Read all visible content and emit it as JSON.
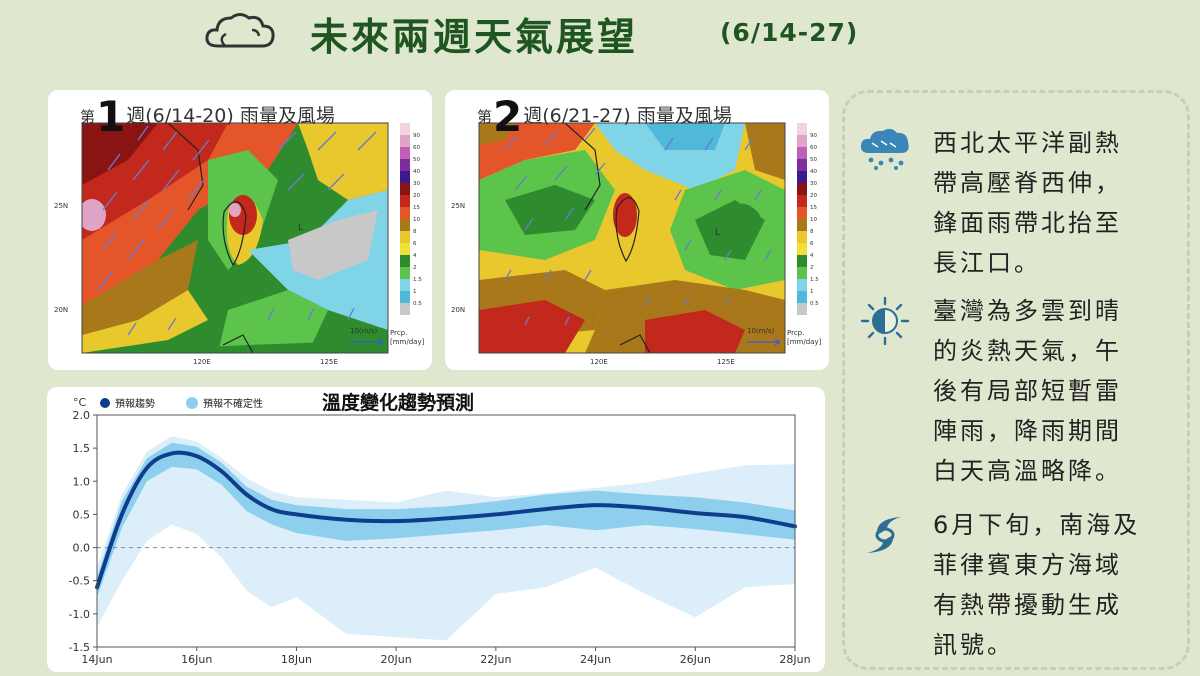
{
  "header": {
    "title": "未來兩週天氣展望",
    "range": "(6/14-27)"
  },
  "maps": [
    {
      "title_prefix": "第",
      "week_num": "1",
      "title_suffix": "週(6/14-20) 雨量及風場",
      "lat_labels": [
        "25N",
        "20N"
      ],
      "lon_labels": [
        "120E",
        "125E"
      ],
      "wind_ref": "10(m/s)",
      "unit_line1": "Prcp.",
      "unit_line2": "[mm/day]"
    },
    {
      "title_prefix": "第",
      "week_num": "2",
      "title_suffix": "週(6/21-27) 雨量及風場",
      "lat_labels": [
        "25N",
        "20N"
      ],
      "lon_labels": [
        "120E",
        "125E"
      ],
      "wind_ref": "10(m/s)",
      "unit_line1": "Prcp.",
      "unit_line2": "[mm/day]"
    }
  ],
  "colorbar": {
    "labels": [
      "90",
      "60",
      "50",
      "40",
      "30",
      "20",
      "15",
      "10",
      "8",
      "6",
      "4",
      "2",
      "1.5",
      "1",
      "0.5"
    ],
    "colors": [
      "#f2d4df",
      "#e0a4c6",
      "#bf5fb8",
      "#7d2d9e",
      "#3a1a8c",
      "#8a1414",
      "#c2281c",
      "#e4562a",
      "#a8781a",
      "#e8c82c",
      "#f0e038",
      "#2e8c2e",
      "#5cc44a",
      "#80d4e8",
      "#50b8d8",
      "#c8c8c8"
    ]
  },
  "chart_data": {
    "type": "line",
    "title": "溫度變化趨勢預測",
    "yunit": "°C",
    "legend": [
      "預報趨勢",
      "預報不確定性"
    ],
    "legend_placement": "top-left",
    "ylim": [
      -1.5,
      2.0
    ],
    "yticks": [
      "2.0",
      "1.5",
      "1.0",
      "0.5",
      "0.0",
      "-0.5",
      "-1.0",
      "-1.5"
    ],
    "xlim": [
      "14Jun",
      "28Jun"
    ],
    "xticks": [
      "14Jun",
      "16Jun",
      "18Jun",
      "20Jun",
      "22Jun",
      "24Jun",
      "26Jun",
      "28Jun"
    ],
    "reference_line": 0.0,
    "series": [
      {
        "name": "預報趨勢",
        "color": "#0d3d8c",
        "x": [
          0,
          0.5,
          1,
          1.5,
          2,
          2.5,
          3,
          3.5,
          4,
          5,
          6,
          7,
          8,
          9,
          10,
          11,
          12,
          13,
          14
        ],
        "values": [
          -0.6,
          0.5,
          1.2,
          1.42,
          1.38,
          1.15,
          0.8,
          0.58,
          0.5,
          0.42,
          0.4,
          0.44,
          0.5,
          0.58,
          0.64,
          0.6,
          0.52,
          0.46,
          0.32
        ]
      }
    ],
    "uncertainty_outer": {
      "name": "預報不確定性",
      "color": "#dbeef9",
      "x": [
        0,
        0.5,
        1,
        1.5,
        2,
        2.5,
        3,
        3.5,
        4,
        5,
        6,
        7,
        8,
        9,
        10,
        11,
        12,
        13,
        14
      ],
      "upper": [
        -0.3,
        0.8,
        1.45,
        1.68,
        1.6,
        1.35,
        1.05,
        0.85,
        0.76,
        0.72,
        0.68,
        0.86,
        0.76,
        0.82,
        0.9,
        0.98,
        1.12,
        1.24,
        1.26
      ],
      "lower": [
        -1.2,
        -0.5,
        0.1,
        0.35,
        0.2,
        -0.15,
        -0.65,
        -0.9,
        -0.75,
        -1.3,
        -1.35,
        -1.4,
        -0.7,
        -0.6,
        -0.3,
        -0.7,
        -1.05,
        -0.6,
        -0.55
      ]
    },
    "uncertainty_inner": {
      "color": "#8fcfee",
      "x": [
        0,
        0.5,
        1,
        1.5,
        2,
        2.5,
        3,
        3.5,
        4,
        5,
        6,
        7,
        8,
        9,
        10,
        11,
        12,
        13,
        14
      ],
      "upper": [
        -0.45,
        0.7,
        1.35,
        1.58,
        1.52,
        1.28,
        0.92,
        0.72,
        0.64,
        0.58,
        0.58,
        0.62,
        0.7,
        0.8,
        0.86,
        0.8,
        0.76,
        0.68,
        0.56
      ],
      "lower": [
        -0.75,
        0.3,
        1.0,
        1.22,
        1.18,
        0.95,
        0.55,
        0.35,
        0.22,
        0.1,
        0.14,
        0.2,
        0.26,
        0.34,
        0.26,
        0.34,
        0.28,
        0.2,
        0.12
      ]
    }
  },
  "outlook": [
    {
      "icon": "rain-cloud-icon",
      "lines": [
        "西北太平洋副熱",
        "帶高壓脊西伸，",
        "鋒面雨帶北抬至",
        "長江口。"
      ]
    },
    {
      "icon": "sun-cloud-icon",
      "lines": [
        "臺灣為多雲到晴",
        "的炎熱天氣，午",
        "後有局部短暫雷",
        "陣雨，降雨期間",
        "白天高溫略降。"
      ]
    },
    {
      "icon": "typhoon-icon",
      "lines": [
        "6月下旬，南海及",
        "菲律賓東方海域",
        "有熱帶擾動生成",
        "訊號。"
      ]
    }
  ]
}
